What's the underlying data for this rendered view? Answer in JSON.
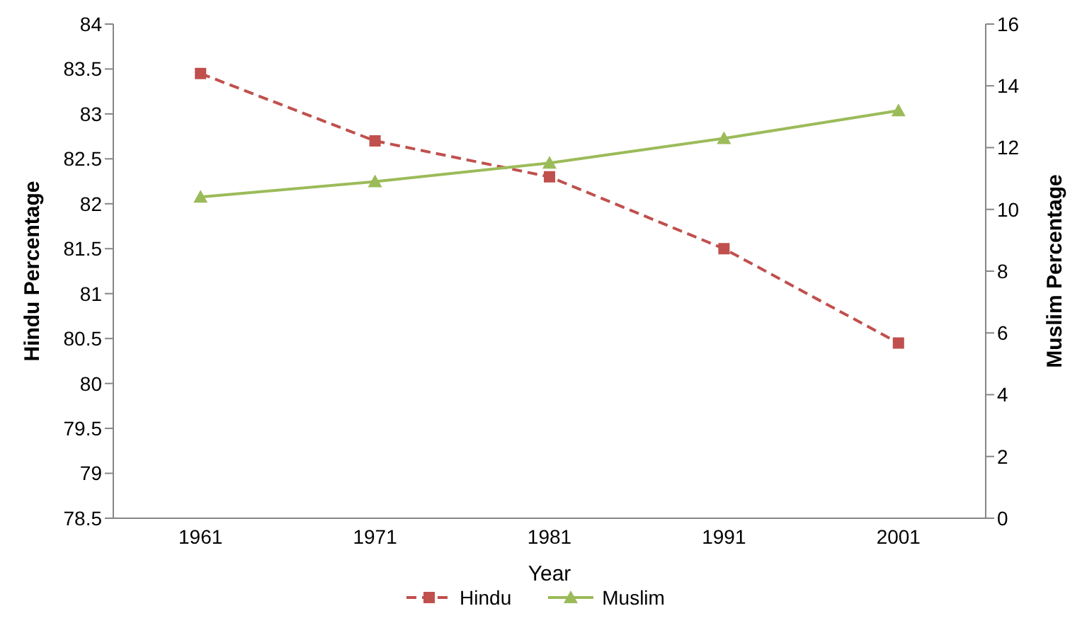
{
  "chart_data": {
    "type": "line",
    "xlabel": "Year",
    "ylabel": "Hindu Percentage",
    "y2label": "Muslim Percentage",
    "categories": [
      "1961",
      "1971",
      "1981",
      "1991",
      "2001"
    ],
    "series": [
      {
        "name": "Hindu",
        "color": "#c0504d",
        "values": [
          83.45,
          82.7,
          82.3,
          81.5,
          80.45
        ],
        "marker": "square",
        "line_style": "dashed"
      },
      {
        "name": "Muslim",
        "color": "#9bbb59",
        "values": [
          10.4,
          10.9,
          11.5,
          12.3,
          13.2
        ],
        "marker": "triangle",
        "line_style": "solid",
        "axis": "y2"
      }
    ],
    "ylim": [
      78.5,
      84
    ],
    "yticks": [
      78.5,
      79,
      79.5,
      80,
      80.5,
      81,
      81.5,
      82,
      82.5,
      83,
      83.5,
      84
    ],
    "y2lim": [
      0,
      16
    ],
    "y2ticks": [
      0,
      2,
      4,
      6,
      8,
      10,
      12,
      14,
      16
    ],
    "grid": false,
    "legend": "bottom"
  }
}
